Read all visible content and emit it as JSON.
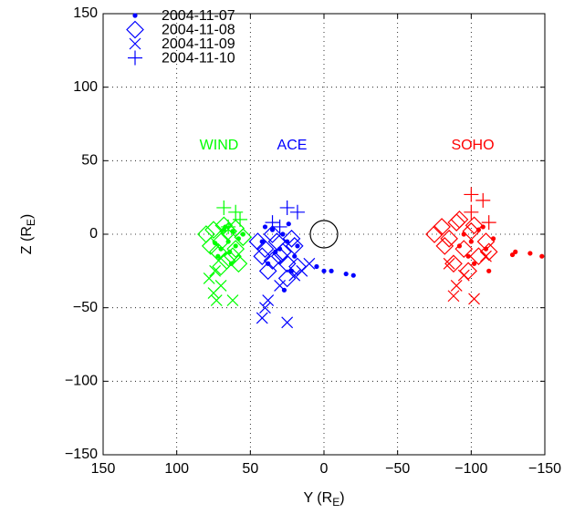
{
  "chart_data": {
    "type": "scatter",
    "xlabel": [
      "Y (R",
      "E",
      ")"
    ],
    "ylabel": [
      "Z (R",
      "E",
      ")"
    ],
    "xlim": [
      150,
      -150
    ],
    "ylim": [
      -150,
      150
    ],
    "xticks": [
      150,
      100,
      50,
      0,
      {
        "value": -50,
        "label": "−50"
      },
      {
        "value": -100,
        "label": "−100"
      },
      {
        "value": -150,
        "label": "−150"
      }
    ],
    "yticks": [
      {
        "value": -150,
        "label": "−150"
      },
      {
        "value": -100,
        "label": "−100"
      },
      {
        "value": -50,
        "label": "−50"
      },
      0,
      50,
      100,
      150
    ],
    "grid": true,
    "legend": "upper left",
    "legend_color": "#0000ff",
    "annotations": [
      {
        "text": "WIND",
        "color": "#00ff00"
      },
      {
        "text": "ACE",
        "color": "#0000ff"
      },
      {
        "text": "SOHO",
        "color": "#ff0000"
      }
    ],
    "series": [
      {
        "name": "2004-11-07",
        "marker": "dot",
        "groups": [
          {
            "color": "#00ff00",
            "x": [
              65,
              62,
              70,
              58,
              67,
              72,
              60,
              64,
              55,
              68,
              63,
              74
            ],
            "y": [
              -5,
              2,
              -10,
              -3,
              5,
              -15,
              -8,
              -12,
              0,
              3,
              -20,
              -6
            ]
          },
          {
            "color": "#0000ff",
            "x": [
              40,
              35,
              30,
              25,
              20,
              38,
              28,
              22,
              33,
              18,
              0,
              5,
              -5,
              -15,
              -20,
              27,
              42,
              24
            ],
            "y": [
              5,
              3,
              -10,
              -5,
              -15,
              -20,
              0,
              -25,
              -12,
              -8,
              -25,
              -22,
              -25,
              -27,
              -28,
              -38,
              -5,
              7
            ]
          },
          {
            "color": "#ff0000",
            "x": [
              -95,
              -100,
              -105,
              -110,
              -98,
              -108,
              -92,
              -115,
              -102,
              -130,
              -128,
              -140,
              -148,
              -112
            ],
            "y": [
              0,
              -5,
              3,
              -10,
              -15,
              5,
              -8,
              -3,
              -20,
              -12,
              -14,
              -13,
              -15,
              -25
            ]
          }
        ]
      },
      {
        "name": "2004-11-08",
        "marker": "diamond",
        "groups": [
          {
            "color": "#00ff00",
            "x": [
              80,
              75,
              70,
              65,
              60,
              72,
              68,
              62,
              58,
              77,
              66,
              55,
              70,
              60
            ],
            "y": [
              0,
              3,
              -5,
              2,
              -10,
              -12,
              6,
              -15,
              -20,
              -8,
              -18,
              -2,
              -22,
              4
            ]
          },
          {
            "color": "#0000ff",
            "x": [
              45,
              40,
              35,
              30,
              25,
              20,
              38,
              32,
              28,
              22,
              18,
              42,
              35,
              25
            ],
            "y": [
              -5,
              -10,
              0,
              -15,
              -20,
              -8,
              -25,
              -5,
              -12,
              -3,
              -22,
              -15,
              -18,
              -30
            ]
          },
          {
            "color": "#ff0000",
            "x": [
              -75,
              -80,
              -85,
              -90,
              -95,
              -100,
              -105,
              -110,
              -88,
              -98,
              -92,
              -102,
              -82,
              -112
            ],
            "y": [
              0,
              5,
              -3,
              8,
              -10,
              2,
              -15,
              -5,
              -20,
              -25,
              10,
              6,
              -8,
              -12
            ]
          }
        ]
      },
      {
        "name": "2004-11-09",
        "marker": "x",
        "groups": [
          {
            "color": "#00ff00",
            "x": [
              75,
              73,
              70,
              78,
              62,
              74
            ],
            "y": [
              -40,
              -45,
              -35,
              -30,
              -45,
              -25
            ]
          },
          {
            "color": "#0000ff",
            "x": [
              40,
              42,
              25,
              38,
              15,
              10,
              30,
              20
            ],
            "y": [
              -50,
              -57,
              -60,
              -45,
              -25,
              -20,
              -35,
              -28
            ]
          },
          {
            "color": "#ff0000",
            "x": [
              -90,
              -88,
              -102,
              -95,
              -110,
              -85
            ],
            "y": [
              -35,
              -42,
              -44,
              -28,
              -15,
              -20
            ]
          }
        ]
      },
      {
        "name": "2004-11-10",
        "marker": "plus",
        "groups": [
          {
            "color": "#00ff00",
            "x": [
              68,
              60,
              65,
              57
            ],
            "y": [
              18,
              15,
              5,
              10
            ]
          },
          {
            "color": "#0000ff",
            "x": [
              25,
              18,
              35,
              30
            ],
            "y": [
              18,
              15,
              8,
              5
            ]
          },
          {
            "color": "#ff0000",
            "x": [
              -100,
              -108,
              -100,
              -112
            ],
            "y": [
              27,
              23,
              15,
              8
            ]
          }
        ]
      }
    ]
  }
}
